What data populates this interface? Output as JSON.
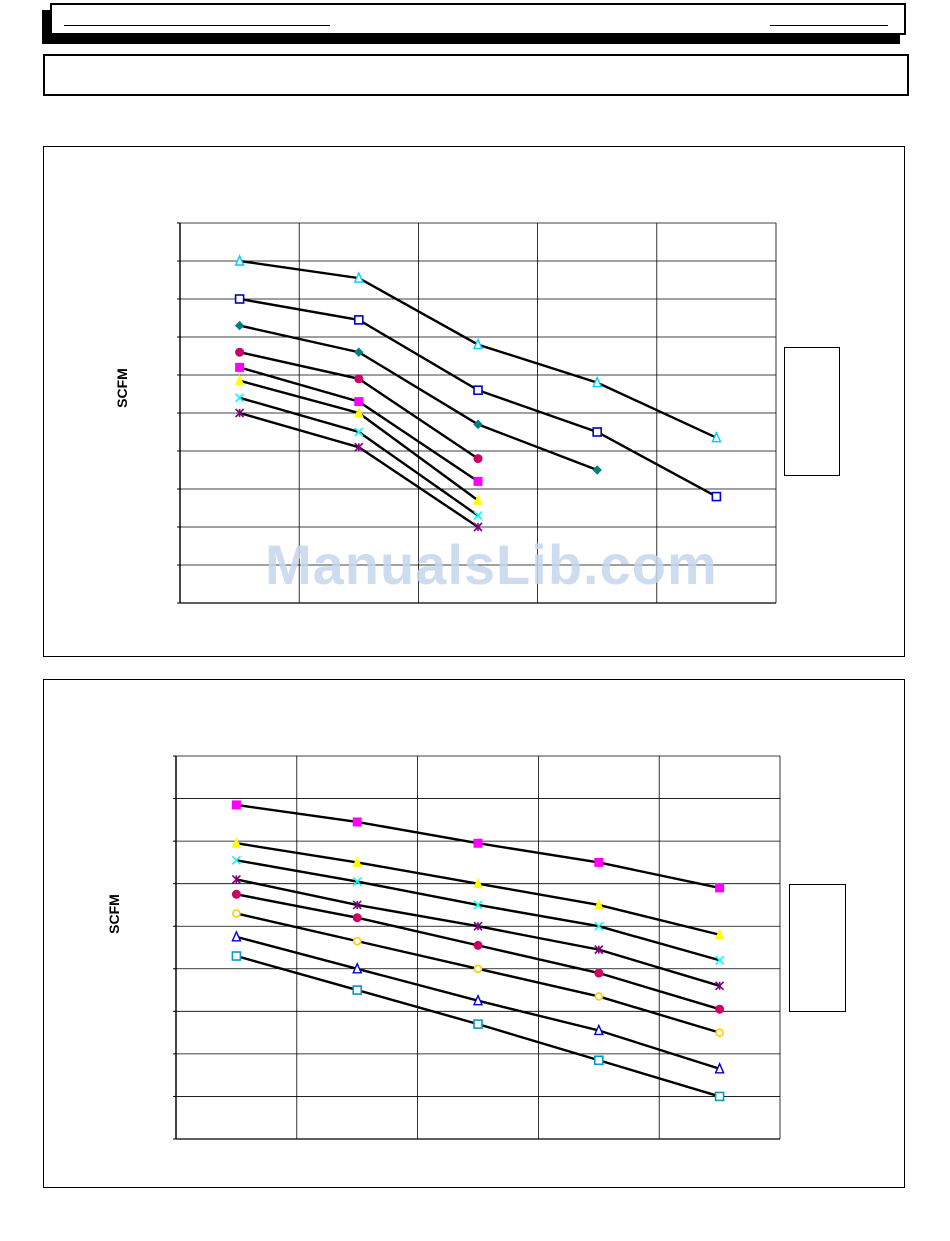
{
  "watermark": "ManualsLib.com",
  "chart_data": [
    {
      "type": "line",
      "ylabel": "SCFM",
      "grid": true,
      "legend_position": "right",
      "n_x_cols": 10,
      "n_y_rows": 10,
      "series": [
        {
          "color": "#ff00ff",
          "marker": "square",
          "points": [
            [
              1,
              6.2
            ],
            [
              3,
              5.3
            ],
            [
              5,
              3.2
            ]
          ]
        },
        {
          "color": "#ffff00",
          "marker": "triangle",
          "points": [
            [
              1,
              5.85
            ],
            [
              3,
              5.0
            ],
            [
              5,
              2.7
            ]
          ]
        },
        {
          "color": "#00ffff",
          "marker": "x",
          "points": [
            [
              1,
              5.4
            ],
            [
              3,
              4.5
            ],
            [
              5,
              2.3
            ]
          ]
        },
        {
          "color": "#800080",
          "marker": "star",
          "points": [
            [
              1,
              5.0
            ],
            [
              3,
              4.1
            ],
            [
              5,
              2.0
            ]
          ]
        },
        {
          "color": "#cc0066",
          "marker": "circle",
          "points": [
            [
              1,
              6.6
            ],
            [
              3,
              5.9
            ],
            [
              5,
              3.8
            ]
          ]
        },
        {
          "color": "#008080",
          "marker": "diamond",
          "points": [
            [
              1,
              7.3
            ],
            [
              3,
              6.6
            ],
            [
              5,
              4.7
            ],
            [
              7,
              3.5
            ]
          ]
        },
        {
          "color": "#0000cc",
          "marker": "open-square",
          "points": [
            [
              1,
              8.0
            ],
            [
              3,
              7.45
            ],
            [
              5,
              5.6
            ],
            [
              7,
              4.5
            ],
            [
              9,
              2.8
            ]
          ]
        },
        {
          "color": "#00ccff",
          "marker": "open-triangle",
          "points": [
            [
              1,
              9.0
            ],
            [
              3,
              8.55
            ],
            [
              5,
              6.8
            ],
            [
              7,
              5.8
            ],
            [
              9,
              4.35
            ]
          ]
        }
      ]
    },
    {
      "type": "line",
      "ylabel": "SCFM",
      "grid": true,
      "legend_position": "right",
      "n_x_cols": 10,
      "n_y_rows": 9,
      "series": [
        {
          "color": "#ff00ff",
          "marker": "square",
          "points": [
            [
              1,
              7.85
            ],
            [
              3,
              7.45
            ],
            [
              5,
              6.95
            ],
            [
              7,
              6.5
            ],
            [
              9,
              5.9
            ]
          ]
        },
        {
          "color": "#ffff00",
          "marker": "triangle",
          "points": [
            [
              1,
              6.95
            ],
            [
              3,
              6.5
            ],
            [
              5,
              6.0
            ],
            [
              7,
              5.5
            ],
            [
              9,
              4.8
            ]
          ]
        },
        {
          "color": "#00ffff",
          "marker": "x",
          "points": [
            [
              1,
              6.55
            ],
            [
              3,
              6.05
            ],
            [
              5,
              5.5
            ],
            [
              7,
              5.0
            ],
            [
              9,
              4.2
            ]
          ]
        },
        {
          "color": "#800080",
          "marker": "star",
          "points": [
            [
              1,
              6.1
            ],
            [
              3,
              5.5
            ],
            [
              5,
              5.0
            ],
            [
              7,
              4.45
            ],
            [
              9,
              3.6
            ]
          ]
        },
        {
          "color": "#cc0066",
          "marker": "circle",
          "points": [
            [
              1,
              5.75
            ],
            [
              3,
              5.2
            ],
            [
              5,
              4.55
            ],
            [
              7,
              3.9
            ],
            [
              9,
              3.05
            ]
          ]
        },
        {
          "color": "#ffcc00",
          "marker": "open-circle",
          "points": [
            [
              1,
              5.3
            ],
            [
              3,
              4.65
            ],
            [
              5,
              4.0
            ],
            [
              7,
              3.35
            ],
            [
              9,
              2.5
            ]
          ]
        },
        {
          "color": "#0000cc",
          "marker": "open-triangle",
          "points": [
            [
              1,
              4.75
            ],
            [
              3,
              4.0
            ],
            [
              5,
              3.25
            ],
            [
              7,
              2.55
            ],
            [
              9,
              1.65
            ]
          ]
        },
        {
          "color": "#0099cc",
          "marker": "open-square",
          "points": [
            [
              1,
              4.3
            ],
            [
              3,
              3.5
            ],
            [
              5,
              2.7
            ],
            [
              7,
              1.85
            ],
            [
              9,
              1.0
            ]
          ]
        }
      ]
    }
  ]
}
